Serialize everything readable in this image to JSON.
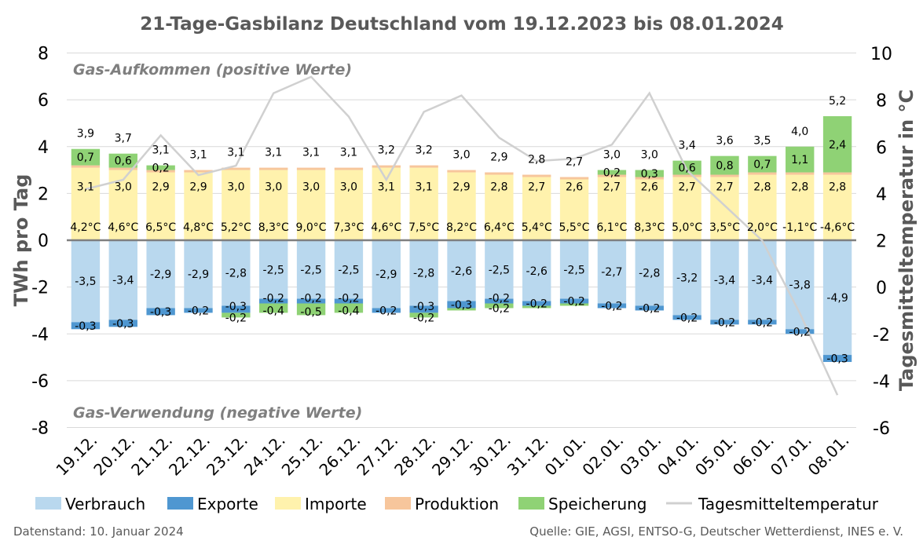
{
  "chart_data": {
    "type": "bar",
    "title": "21-Tage-Gasbilanz Deutschland vom 19.12.2023 bis 08.01.2024",
    "ylabel": "TWh pro Tag",
    "y2label": "Tagesmitteltemperatur in °C",
    "ylim": [
      -8,
      8
    ],
    "y2lim": [
      -6,
      10
    ],
    "yticks": [
      "8",
      "6",
      "4",
      "2",
      "0",
      "-2",
      "-4",
      "-6",
      "-8"
    ],
    "y2ticks": [
      "10",
      "8",
      "6",
      "4",
      "2",
      "0",
      "-2",
      "-4",
      "-6"
    ],
    "categories": [
      "19.12.",
      "20.12.",
      "21.12.",
      "22.12.",
      "23.12.",
      "24.12.",
      "25.12.",
      "26.12.",
      "27.12.",
      "28.12.",
      "29.12.",
      "30.12.",
      "31.12.",
      "01.01.",
      "02.01.",
      "03.01.",
      "04.01.",
      "05.01.",
      "06.01.",
      "07.01.",
      "08.01."
    ],
    "series": [
      {
        "name": "Verbrauch",
        "color": "#b9d8ee",
        "values": [
          -3.5,
          -3.4,
          -2.9,
          -2.9,
          -2.8,
          -2.5,
          -2.5,
          -2.5,
          -2.9,
          -2.8,
          -2.6,
          -2.5,
          -2.6,
          -2.5,
          -2.7,
          -2.8,
          -3.2,
          -3.4,
          -3.4,
          -3.8,
          -4.9
        ],
        "labels": [
          "-3,5",
          "-3,4",
          "-2,9",
          "-2,9",
          "-2,8",
          "-2,5",
          "-2,5",
          "-2,5",
          "-2,9",
          "-2,8",
          "-2,6",
          "-2,5",
          "-2,6",
          "-2,5",
          "-2,7",
          "-2,8",
          "-3,2",
          "-3,4",
          "-3,4",
          "-3,8",
          "-4,9"
        ]
      },
      {
        "name": "Exporte",
        "color": "#4f97d1",
        "values": [
          -0.3,
          -0.3,
          -0.3,
          -0.2,
          -0.3,
          -0.2,
          -0.2,
          -0.2,
          -0.2,
          -0.3,
          -0.3,
          -0.2,
          -0.2,
          -0.2,
          -0.2,
          -0.2,
          -0.2,
          -0.2,
          -0.2,
          -0.2,
          -0.3
        ],
        "labels": [
          "-0,3",
          "-0,3",
          "-0,3",
          "-0,2",
          "-0,3",
          "-0,2",
          "-0,2",
          "-0,2",
          "-0,2",
          "-0,3",
          "-0,3",
          "-0,2",
          "-0,2",
          "-0,2",
          "-0,2",
          "-0,2",
          "-0,2",
          "-0,2",
          "-0,2",
          "-0,2",
          "-0,3"
        ]
      },
      {
        "name": "Speicherung (Einspeicherung)",
        "color": "#8fd275",
        "values": [
          0,
          0,
          0,
          0,
          -0.2,
          -0.4,
          -0.5,
          -0.4,
          0,
          -0.2,
          -0.1,
          -0.2,
          -0.1,
          -0.1,
          0,
          0,
          0,
          0,
          0,
          0,
          0
        ],
        "labels": [
          "",
          "",
          "",
          "",
          "-0,2",
          "-0,4",
          "-0,5",
          "-0,4",
          "",
          "-0,2",
          "",
          "-0,2",
          "",
          "",
          "",
          "",
          "",
          "",
          "",
          "",
          ""
        ]
      },
      {
        "name": "Importe",
        "color": "#fff2ad",
        "values": [
          3.1,
          3.0,
          2.9,
          2.9,
          3.0,
          3.0,
          3.0,
          3.0,
          3.1,
          3.1,
          2.9,
          2.8,
          2.7,
          2.6,
          2.7,
          2.6,
          2.7,
          2.7,
          2.8,
          2.8,
          2.8
        ],
        "labels": [
          "3,1",
          "3,0",
          "2,9",
          "2,9",
          "3,0",
          "3,0",
          "3,0",
          "3,0",
          "3,1",
          "3,1",
          "2,9",
          "2,8",
          "2,7",
          "2,6",
          "2,7",
          "2,6",
          "2,7",
          "2,7",
          "2,8",
          "2,8",
          "2,8"
        ]
      },
      {
        "name": "Produktion",
        "color": "#f7c69c",
        "values": [
          0.1,
          0.1,
          0.1,
          0.1,
          0.1,
          0.1,
          0.1,
          0.1,
          0.1,
          0.1,
          0.1,
          0.1,
          0.1,
          0.1,
          0.1,
          0.1,
          0.1,
          0.1,
          0.1,
          0.1,
          0.1
        ],
        "labels": []
      },
      {
        "name": "Speicherung",
        "color": "#8fd275",
        "values": [
          0.7,
          0.6,
          0.2,
          0,
          0,
          0,
          0,
          0,
          0,
          0,
          0,
          0,
          0,
          0,
          0.2,
          0.3,
          0.6,
          0.8,
          0.7,
          1.1,
          2.4
        ],
        "labels": [
          "0,7",
          "0,6",
          "0,2",
          "",
          "",
          "",
          "",
          "",
          "",
          "",
          "",
          "",
          "",
          "",
          "0,2",
          "0,3",
          "0,6",
          "0,8",
          "0,7",
          "1,1",
          "2,4"
        ]
      },
      {
        "name": "Tagesmitteltemperatur",
        "color": "#d0d0d0",
        "values": [
          4.2,
          4.6,
          6.5,
          4.8,
          5.2,
          8.3,
          9.0,
          7.3,
          4.6,
          7.5,
          8.2,
          6.4,
          5.4,
          5.5,
          6.1,
          8.3,
          5.0,
          3.5,
          2.0,
          -1.1,
          -4.6
        ],
        "labels": [
          "4,2°C",
          "4,6°C",
          "6,5°C",
          "4,8°C",
          "5,2°C",
          "8,3°C",
          "9,0°C",
          "7,3°C",
          "4,6°C",
          "7,5°C",
          "8,2°C",
          "6,4°C",
          "5,4°C",
          "5,5°C",
          "6,1°C",
          "8,3°C",
          "5,0°C",
          "3,5°C",
          "2,0°C",
          "-1,1°C",
          "-4,6°C"
        ]
      }
    ],
    "totals": [
      "3,9",
      "3,7",
      "3,1",
      "3,1",
      "3,1",
      "3,1",
      "3,1",
      "3,1",
      "3,2",
      "3,2",
      "3,0",
      "2,9",
      "2,8",
      "2,7",
      "3,0",
      "3,0",
      "3,4",
      "3,6",
      "3,5",
      "4,0",
      "5,2"
    ],
    "annotations": {
      "positive": "Gas-Aufkommen (positive Werte)",
      "negative": "Gas-Verwendung (negative Werte)"
    },
    "legend": [
      "Verbrauch",
      "Exporte",
      "Importe",
      "Produktion",
      "Speicherung",
      "Tagesmitteltemperatur"
    ],
    "legend_position": "bottom"
  },
  "footer": {
    "left": "Datenstand: 10. Januar 2024",
    "right": "Quelle: GIE, AGSI, ENTSO-G, Deutscher Wetterdienst, INES e. V."
  }
}
